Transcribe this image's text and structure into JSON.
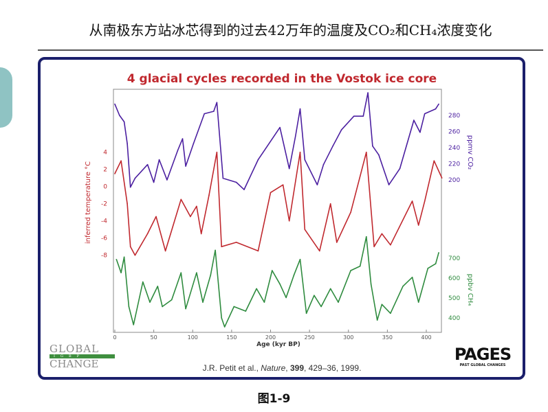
{
  "slide": {
    "title": "从南极东方站冰芯得到的过去42万年的温度及CO₂和CH₄浓度变化",
    "caption": "图1-9"
  },
  "logos": {
    "global_change_top": "GLOBAL",
    "global_change_mid": "IGBP",
    "global_change_bottom": "CHANGE",
    "pages_main": "PAGES",
    "pages_sub": "PAST GLOBAL CHANGES"
  },
  "citation": {
    "authors": "J.R. Petit et al., ",
    "journal": "Nature",
    "sep1": ", ",
    "volume": "399",
    "rest": ", 429–36, 1999."
  },
  "colors": {
    "frame": "#1b1f6b",
    "title": "#c0282e",
    "temperature": "#c0282e",
    "co2": "#4b1fa0",
    "ch4": "#2e8b3e",
    "accent_arc": "#8fc3c3"
  },
  "chart_data": {
    "type": "line",
    "title": "4 glacial cycles recorded in the Vostok ice core",
    "xlabel": "Age (kyr BP)",
    "xlim": [
      0,
      420
    ],
    "xticks": [
      0,
      50,
      100,
      150,
      200,
      250,
      300,
      350,
      400
    ],
    "grid": false,
    "series": [
      {
        "key": "temperature",
        "axis_label": "inferred temperature °C",
        "axis": "left",
        "ticks": [
          4,
          2,
          0,
          -2,
          -4,
          -6,
          -8
        ],
        "x": [
          0,
          8,
          16,
          20,
          26,
          42,
          53,
          65,
          85,
          97,
          105,
          111,
          121,
          131,
          137,
          156,
          184,
          200,
          216,
          224,
          238,
          244,
          263,
          277,
          285,
          303,
          323,
          333,
          343,
          354,
          382,
          390,
          398,
          410,
          420
        ],
        "y": [
          1.5,
          3,
          -2,
          -7,
          -8,
          -5.5,
          -3.5,
          -7.5,
          -1.5,
          -3.5,
          -2.3,
          -5.5,
          -1,
          4,
          -7,
          -6.5,
          -7.5,
          -0.7,
          0.2,
          -4,
          4,
          -5,
          -7.5,
          -2,
          -6.5,
          -3,
          4,
          -7,
          -5.5,
          -6.8,
          -1.7,
          -4.5,
          -1.7,
          3,
          1
        ]
      },
      {
        "key": "co2",
        "axis_label": "ppmv CO₂",
        "axis": "right-top",
        "ticks": [
          280,
          260,
          240,
          220,
          200
        ],
        "x": [
          0,
          6,
          12,
          16,
          20,
          26,
          42,
          50,
          57,
          67,
          81,
          87,
          91,
          101,
          115,
          127,
          131,
          139,
          156,
          166,
          184,
          212,
          224,
          232,
          238,
          244,
          260,
          268,
          280,
          291,
          307,
          319,
          325,
          331,
          339,
          352,
          366,
          384,
          392,
          398,
          412,
          416
        ],
        "y": [
          294,
          280,
          272,
          245,
          191,
          202,
          219,
          197,
          225,
          200,
          237,
          251,
          217,
          245,
          282,
          285,
          296,
          202,
          197,
          188,
          225,
          265,
          214,
          254,
          288,
          225,
          194,
          219,
          242,
          262,
          279,
          279,
          308,
          242,
          231,
          194,
          214,
          274,
          259,
          282,
          288,
          294
        ]
      },
      {
        "key": "ch4",
        "axis_label": "ppbv CH₄",
        "axis": "right-bottom",
        "ticks": [
          700,
          600,
          500,
          400
        ],
        "x": [
          2,
          8,
          12,
          18,
          24,
          36,
          45,
          55,
          61,
          73,
          85,
          91,
          105,
          113,
          123,
          129,
          137,
          141,
          153,
          168,
          182,
          192,
          202,
          212,
          220,
          230,
          238,
          246,
          256,
          265,
          277,
          287,
          303,
          315,
          323,
          329,
          337,
          343,
          354,
          370,
          382,
          390,
          402,
          412,
          416
        ],
        "y": [
          694,
          627,
          706,
          457,
          366,
          581,
          479,
          559,
          457,
          491,
          627,
          446,
          627,
          479,
          615,
          740,
          400,
          355,
          457,
          434,
          547,
          479,
          638,
          570,
          502,
          615,
          694,
          423,
          513,
          457,
          547,
          479,
          638,
          660,
          808,
          570,
          389,
          468,
          423,
          559,
          604,
          479,
          649,
          672,
          728
        ]
      }
    ]
  }
}
